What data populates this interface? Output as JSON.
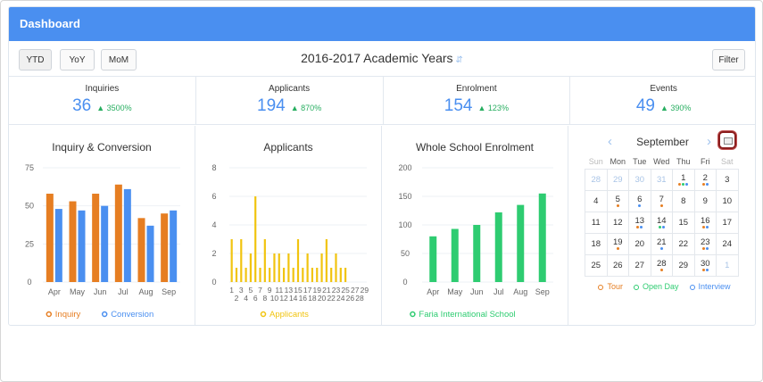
{
  "header": {
    "title": "Dashboard"
  },
  "toolbar": {
    "buttons": [
      {
        "label": "YTD",
        "active": true
      },
      {
        "label": "YoY",
        "active": false
      },
      {
        "label": "MoM",
        "active": false
      }
    ],
    "academic_year": "2016-2017 Academic Years",
    "filter_label": "Filter"
  },
  "stats": [
    {
      "label": "Inquiries",
      "value": "36",
      "delta": "3500%"
    },
    {
      "label": "Applicants",
      "value": "194",
      "delta": "870%"
    },
    {
      "label": "Enrolment",
      "value": "154",
      "delta": "123%"
    },
    {
      "label": "Events",
      "value": "49",
      "delta": "390%"
    }
  ],
  "colors": {
    "inquiry": "#e67e22",
    "conversion": "#4a8ff0",
    "applicants": "#f1c40f",
    "enrolment": "#2ecc71",
    "accent": "#4a8ff0",
    "up": "#27ae60"
  },
  "chart_data": [
    {
      "type": "bar",
      "title": "Inquiry & Conversion",
      "categories": [
        "Apr",
        "May",
        "Jun",
        "Jul",
        "Aug",
        "Sep"
      ],
      "series": [
        {
          "name": "Inquiry",
          "values": [
            58,
            53,
            58,
            64,
            42,
            45
          ]
        },
        {
          "name": "Conversion",
          "values": [
            48,
            47,
            50,
            61,
            37,
            47
          ]
        }
      ],
      "yticks": [
        0,
        25,
        50,
        75
      ],
      "ylim": [
        0,
        75
      ],
      "legend": "bottom"
    },
    {
      "type": "bar",
      "title": "Applicants",
      "categories": [
        "1",
        "2",
        "3",
        "4",
        "5",
        "6",
        "7",
        "8",
        "9",
        "10",
        "11",
        "12",
        "13",
        "14",
        "15",
        "16",
        "17",
        "18",
        "19",
        "20",
        "21",
        "22",
        "23",
        "24",
        "25",
        "26",
        "27",
        "28",
        "29"
      ],
      "top_labels": [
        "1",
        "3",
        "5",
        "7",
        "9",
        "11",
        "13",
        "15",
        "17",
        "19",
        "21",
        "23",
        "25",
        "27",
        "29"
      ],
      "bottom_labels": [
        "2",
        "4",
        "6",
        "8",
        "10",
        "12",
        "14",
        "16",
        "18",
        "20",
        "22",
        "24",
        "26",
        "28"
      ],
      "series": [
        {
          "name": "Applicants",
          "values": [
            3,
            1,
            3,
            1,
            2,
            6,
            1,
            3,
            1,
            2,
            2,
            1,
            2,
            1,
            3,
            1,
            2,
            1,
            1,
            2,
            3,
            1,
            2,
            1,
            1,
            0,
            0,
            0,
            0
          ]
        }
      ],
      "yticks": [
        0,
        2,
        4,
        6,
        8
      ],
      "ylim": [
        0,
        8
      ],
      "legend": "bottom"
    },
    {
      "type": "bar",
      "title": "Whole School Enrolment",
      "categories": [
        "Apr",
        "May",
        "Jun",
        "Jul",
        "Aug",
        "Sep"
      ],
      "series": [
        {
          "name": "Faria International School",
          "values": [
            80,
            93,
            100,
            122,
            135,
            155
          ]
        }
      ],
      "yticks": [
        0,
        50,
        100,
        150,
        200
      ],
      "ylim": [
        0,
        200
      ],
      "legend": "bottom"
    }
  ],
  "calendar": {
    "month": "September",
    "weekdays": [
      "Sun",
      "Mon",
      "Tue",
      "Wed",
      "Thu",
      "Fri",
      "Sat"
    ],
    "weeks": [
      [
        {
          "d": "28",
          "o": true
        },
        {
          "d": "29",
          "o": true
        },
        {
          "d": "30",
          "o": true
        },
        {
          "d": "31",
          "o": true
        },
        {
          "d": "1",
          "dots": [
            "tour",
            "openday",
            "interview"
          ]
        },
        {
          "d": "2",
          "dots": [
            "tour",
            "interview"
          ]
        },
        {
          "d": "3"
        }
      ],
      [
        {
          "d": "4"
        },
        {
          "d": "5",
          "dots": [
            "tour"
          ]
        },
        {
          "d": "6",
          "dots": [
            "interview"
          ]
        },
        {
          "d": "7",
          "dots": [
            "tour"
          ]
        },
        {
          "d": "8"
        },
        {
          "d": "9"
        },
        {
          "d": "10"
        }
      ],
      [
        {
          "d": "11"
        },
        {
          "d": "12"
        },
        {
          "d": "13",
          "dots": [
            "tour",
            "interview"
          ]
        },
        {
          "d": "14",
          "dots": [
            "openday",
            "interview"
          ]
        },
        {
          "d": "15"
        },
        {
          "d": "16",
          "dots": [
            "tour",
            "interview"
          ]
        },
        {
          "d": "17"
        }
      ],
      [
        {
          "d": "18"
        },
        {
          "d": "19",
          "dots": [
            "tour"
          ]
        },
        {
          "d": "20"
        },
        {
          "d": "21",
          "dots": [
            "interview"
          ]
        },
        {
          "d": "22"
        },
        {
          "d": "23",
          "dots": [
            "tour",
            "interview"
          ]
        },
        {
          "d": "24"
        }
      ],
      [
        {
          "d": "25"
        },
        {
          "d": "26"
        },
        {
          "d": "27"
        },
        {
          "d": "28",
          "dots": [
            "tour"
          ]
        },
        {
          "d": "29"
        },
        {
          "d": "30",
          "dots": [
            "tour",
            "interview"
          ]
        },
        {
          "d": "1",
          "o": true
        }
      ]
    ],
    "legend": [
      {
        "key": "tour",
        "label": "Tour",
        "color": "#e67e22"
      },
      {
        "key": "openday",
        "label": "Open Day",
        "color": "#2ecc71"
      },
      {
        "key": "interview",
        "label": "Interview",
        "color": "#4a8ff0"
      }
    ]
  }
}
